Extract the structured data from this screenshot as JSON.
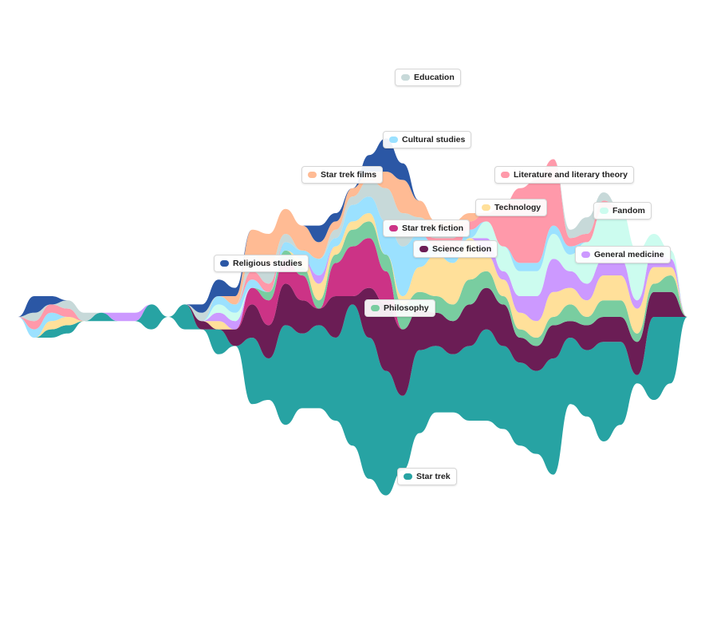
{
  "chart_data": {
    "type": "area",
    "subtype": "streamgraph",
    "title": "",
    "xlabel": "",
    "ylabel": "",
    "grid": false,
    "legend": "inline labels",
    "x": [
      0,
      1,
      2,
      3,
      4,
      5,
      6,
      7,
      8,
      9,
      10,
      11,
      12,
      13,
      14,
      15,
      16,
      17,
      18,
      19,
      20,
      21,
      22,
      23,
      24,
      25,
      26,
      27,
      28,
      29,
      30,
      31,
      32,
      33,
      34,
      35,
      36,
      37,
      38,
      39,
      40
    ],
    "series": [
      {
        "name": "Star trek",
        "color": "#27a3a3",
        "values": [
          0,
          0,
          1,
          1,
          0,
          1,
          0,
          0,
          3,
          0,
          3,
          0,
          3,
          0,
          8,
          5,
          12,
          9,
          10,
          10,
          17,
          17,
          15,
          9,
          10,
          8,
          7,
          9,
          11,
          10,
          10,
          10,
          14,
          8,
          8,
          12,
          10,
          1,
          10,
          8,
          0
        ]
      },
      {
        "name": "Science fiction",
        "color": "#6b1d55",
        "values": [
          0,
          0,
          0,
          0,
          0,
          0,
          0,
          0,
          0,
          0,
          0,
          1,
          0,
          2,
          4,
          4,
          5,
          4,
          2,
          5,
          1,
          6,
          8,
          8,
          5,
          4,
          4,
          5,
          5,
          5,
          3,
          3,
          4,
          2,
          3,
          3,
          3,
          4,
          3,
          3,
          0
        ]
      },
      {
        "name": "Star trek fiction",
        "color": "#cc3386",
        "values": [
          0,
          0,
          0,
          0,
          0,
          0,
          0,
          0,
          0,
          0,
          0,
          0,
          0,
          0,
          2,
          3,
          3,
          3,
          0,
          4,
          6,
          6,
          4,
          0,
          0,
          0,
          0,
          0,
          0,
          0,
          0,
          0,
          0,
          0,
          0,
          0,
          0,
          0,
          0,
          0,
          0
        ]
      },
      {
        "name": "Philosophy",
        "color": "#79cda0",
        "values": [
          0,
          0,
          0,
          0,
          0,
          0,
          0,
          0,
          0,
          0,
          0,
          0,
          0,
          0,
          0,
          1,
          1,
          1,
          1,
          1,
          2,
          2,
          2,
          3,
          2,
          2,
          2,
          3,
          2,
          1,
          1,
          1,
          1,
          2,
          1,
          2,
          2,
          1,
          1,
          2,
          0
        ]
      },
      {
        "name": "Technology",
        "color": "#ffe09a",
        "values": [
          0,
          0,
          1,
          1,
          0,
          0,
          0,
          0,
          0,
          0,
          0,
          0,
          1,
          0,
          0,
          0,
          0,
          1,
          2,
          1,
          1,
          1,
          0,
          1,
          3,
          5,
          5,
          5,
          2,
          2,
          2,
          2,
          3,
          2,
          2,
          3,
          3,
          3,
          2,
          1,
          0
        ]
      },
      {
        "name": "General medicine",
        "color": "#cc99ff",
        "values": [
          0,
          0,
          0,
          0,
          0,
          0,
          1,
          1,
          0,
          0,
          0,
          0,
          1,
          1,
          0,
          0,
          0,
          0,
          1,
          0,
          0,
          0,
          0,
          0,
          0,
          0,
          0,
          0,
          2,
          1,
          2,
          3,
          4,
          2,
          2,
          2,
          2,
          1,
          2,
          1,
          0
        ]
      },
      {
        "name": "Fandom",
        "color": "#ccfcef",
        "values": [
          0,
          0,
          0,
          0,
          0,
          0,
          0,
          0,
          0,
          0,
          0,
          0,
          1,
          1,
          0,
          0,
          0,
          0,
          0,
          0,
          0,
          0,
          0,
          0,
          0,
          0,
          0,
          0,
          2,
          3,
          3,
          3,
          3,
          2,
          5,
          6,
          6,
          6,
          2,
          1,
          0
        ]
      },
      {
        "name": "Cultural studies",
        "color": "#9be1ff",
        "values": [
          0,
          1,
          1,
          0,
          0,
          0,
          0,
          0,
          0,
          0,
          0,
          0,
          1,
          1,
          1,
          0,
          1,
          1,
          2,
          1,
          2,
          2,
          4,
          6,
          4,
          1,
          1,
          1,
          0,
          0,
          1,
          1,
          1,
          1,
          0,
          0,
          0,
          0,
          0,
          0,
          0
        ]
      },
      {
        "name": "Literature and literary theory",
        "color": "#ff99aa",
        "values": [
          0,
          1,
          1,
          1,
          0,
          0,
          0,
          0,
          0,
          0,
          0,
          0,
          0,
          0,
          1,
          1,
          0,
          0,
          0,
          0,
          0,
          0,
          0,
          0,
          0,
          1,
          2,
          1,
          1,
          5,
          9,
          10,
          8,
          1,
          1,
          1,
          0,
          0,
          0,
          0,
          0
        ]
      },
      {
        "name": "Education",
        "color": "#c7d9d9",
        "values": [
          0,
          1,
          0,
          1,
          1,
          0,
          0,
          0,
          0,
          0,
          0,
          1,
          0,
          0,
          2,
          2,
          1,
          0,
          0,
          1,
          1,
          2,
          4,
          4,
          2,
          1,
          1,
          0,
          0,
          0,
          0,
          0,
          0,
          1,
          2,
          1,
          0,
          0,
          0,
          0,
          0
        ]
      },
      {
        "name": "Star trek films",
        "color": "#ffbb94",
        "values": [
          0,
          0,
          0,
          0,
          0,
          0,
          0,
          0,
          0,
          0,
          0,
          0,
          0,
          1,
          3,
          4,
          3,
          3,
          2,
          1,
          1,
          1,
          2,
          4,
          2,
          1,
          1,
          1,
          0,
          0,
          0,
          0,
          0,
          0,
          0,
          0,
          0,
          0,
          0,
          0,
          0
        ]
      },
      {
        "name": "Religious studies",
        "color": "#2b57a5",
        "values": [
          0,
          2,
          1,
          0,
          0,
          0,
          0,
          0,
          0,
          0,
          0,
          1,
          2,
          1,
          0,
          0,
          0,
          0,
          2,
          1,
          0,
          2,
          4,
          2,
          0,
          0,
          0,
          0,
          0,
          0,
          0,
          0,
          0,
          0,
          0,
          0,
          0,
          0,
          0,
          0,
          0
        ]
      }
    ]
  }
}
